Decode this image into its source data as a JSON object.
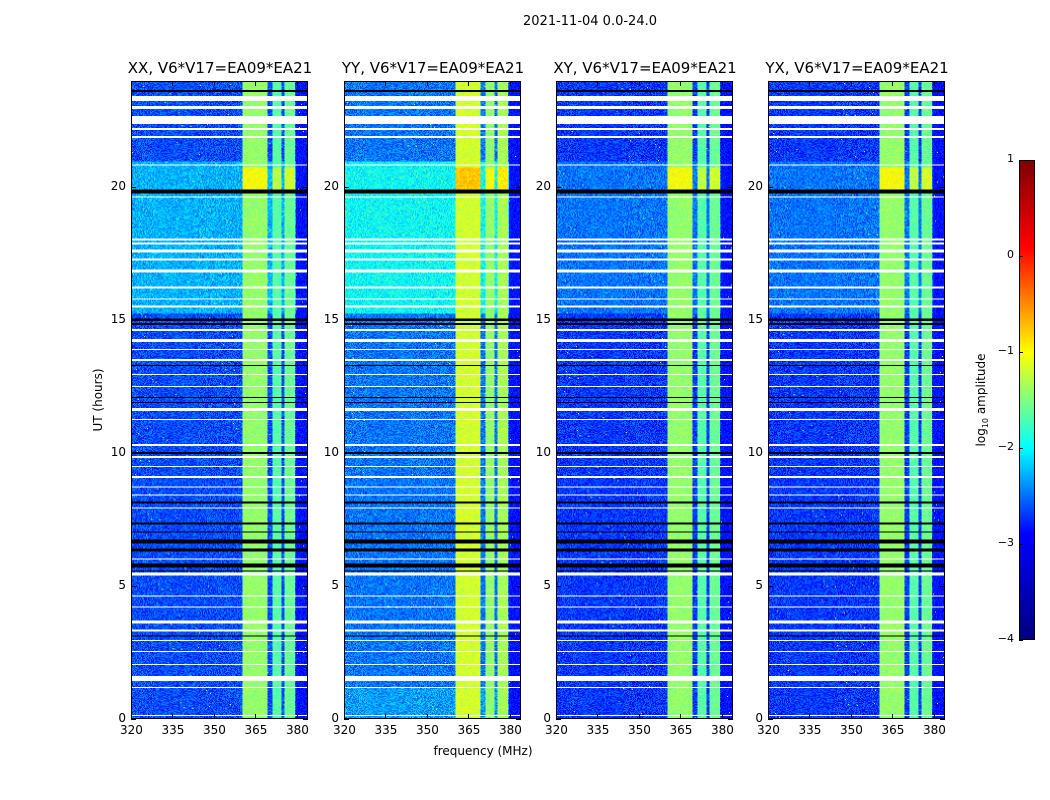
{
  "chart_data": {
    "type": "heatmap",
    "title": "2021-11-04 0.0-24.0",
    "xlabel": "frequency (MHz)",
    "ylabel": "UT (hours)",
    "xlim": [
      320,
      384
    ],
    "ylim": [
      0,
      24
    ],
    "xticks": [
      "320",
      "335",
      "350",
      "365",
      "380"
    ],
    "xtick_values": [
      320,
      335,
      350,
      365,
      380
    ],
    "yticks": [
      "0",
      "5",
      "10",
      "15",
      "20"
    ],
    "ytick_values": [
      0,
      5,
      10,
      15,
      20
    ],
    "colorbar": {
      "label": "log10 amplitude",
      "label_main": "log",
      "label_sub": "10",
      "label_rest": " amplitude",
      "range": [
        -4,
        1
      ],
      "ticks": [
        "1",
        "0",
        "−1",
        "−2",
        "−3",
        "−4"
      ],
      "tick_values": [
        1,
        0,
        -1,
        -2,
        -3,
        -4
      ],
      "colormap": "jet"
    },
    "rfi_bands_mhz": [
      [
        360.4,
        369.5,
        -1.4
      ],
      [
        371.0,
        374.5,
        -1.7
      ],
      [
        375.6,
        379.6,
        -1.6
      ]
    ],
    "flagged_hours_white": [
      [
        23.3,
        23.5
      ],
      [
        23.0,
        23.1
      ],
      [
        22.45,
        22.75
      ],
      [
        22.2,
        22.3
      ],
      [
        21.9,
        22.0
      ],
      [
        20.85,
        20.9
      ],
      [
        19.65,
        19.7
      ],
      [
        18.05,
        18.1
      ],
      [
        17.9,
        17.95
      ],
      [
        17.6,
        17.7
      ],
      [
        17.3,
        17.35
      ],
      [
        16.85,
        16.95
      ],
      [
        16.25,
        16.3
      ],
      [
        15.8,
        15.85
      ],
      [
        15.5,
        15.6
      ],
      [
        14.6,
        14.7
      ],
      [
        14.2,
        14.3
      ],
      [
        13.9,
        13.95
      ],
      [
        13.5,
        13.55
      ],
      [
        12.95,
        13.0
      ],
      [
        12.5,
        12.55
      ],
      [
        11.6,
        11.7
      ],
      [
        11.25,
        11.3
      ],
      [
        10.3,
        10.35
      ],
      [
        9.85,
        9.9
      ],
      [
        9.5,
        9.55
      ],
      [
        9.1,
        9.15
      ],
      [
        8.7,
        8.75
      ],
      [
        8.4,
        8.45
      ],
      [
        7.9,
        7.95
      ],
      [
        6.0,
        6.05
      ],
      [
        5.4,
        5.5
      ],
      [
        4.6,
        4.65
      ],
      [
        4.2,
        4.25
      ],
      [
        3.6,
        3.7
      ],
      [
        3.3,
        3.35
      ],
      [
        2.9,
        2.95
      ],
      [
        2.5,
        2.55
      ],
      [
        2.0,
        2.05
      ],
      [
        1.4,
        1.6
      ],
      [
        1.15,
        1.2
      ],
      [
        0.1,
        0.15
      ]
    ],
    "flagged_hours_black": [
      [
        23.65,
        23.7
      ],
      [
        19.8,
        19.95
      ],
      [
        15.0,
        15.1
      ],
      [
        14.85,
        14.9
      ],
      [
        13.3,
        13.35
      ],
      [
        12.1,
        12.15
      ],
      [
        11.9,
        11.95
      ],
      [
        10.0,
        10.05
      ],
      [
        8.1,
        8.2
      ],
      [
        7.3,
        7.4
      ],
      [
        7.0,
        7.05
      ],
      [
        6.6,
        6.75
      ],
      [
        6.3,
        6.4
      ],
      [
        5.7,
        5.85
      ],
      [
        5.55,
        5.6
      ],
      [
        3.1,
        3.15
      ]
    ],
    "panels": [
      {
        "title": "XX, V6*V17=EA09*EA21",
        "background": -3.0,
        "bright_hours": [
          [
            15.3,
            21.0,
            -2.5
          ]
        ]
      },
      {
        "title": "YY, V6*V17=EA09*EA21",
        "background": -2.8,
        "bright_hours": [
          [
            15.3,
            21.0,
            -2.1
          ],
          [
            0,
            1.2,
            -2.6
          ]
        ]
      },
      {
        "title": "XY, V6*V17=EA09*EA21",
        "background": -3.1,
        "bright_hours": [
          [
            15.3,
            21.0,
            -2.8
          ]
        ]
      },
      {
        "title": "YX, V6*V17=EA09*EA21",
        "background": -3.1,
        "bright_hours": [
          [
            15.3,
            21.0,
            -2.8
          ]
        ]
      }
    ]
  }
}
